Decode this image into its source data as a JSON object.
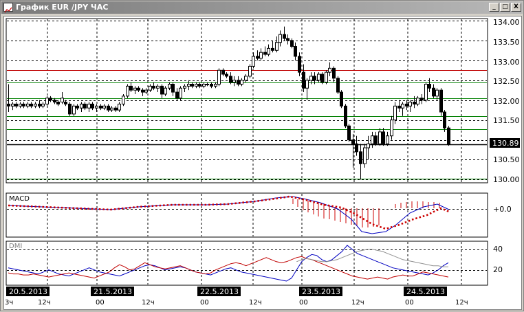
{
  "window": {
    "title": "График EUR /JPY  ЧАС",
    "buttons": [
      "_",
      "□",
      "X"
    ]
  },
  "price_axis": {
    "ticks": [
      "134.00",
      "133.50",
      "133.00",
      "132.50",
      "132.00",
      "131.50",
      "131.00",
      "130.50",
      "130.00"
    ],
    "current_price": "130.89"
  },
  "macd_panel": {
    "label": "MACD",
    "tick": "+0.0"
  },
  "dmi_panel": {
    "label": "DMI",
    "ticks": [
      "40",
      "20"
    ]
  },
  "time_axis": {
    "dates": [
      "20.5.2013",
      "21.5.2013",
      "22.5.2013",
      "23.5.2013",
      "24.5.2013"
    ],
    "hour_labels": [
      "3ч",
      "12ч",
      "00",
      "12ч",
      "00",
      "12ч",
      "00",
      "12ч",
      "00",
      "12ч"
    ]
  },
  "chart_data": [
    {
      "type": "candlestick",
      "title": "EUR /JPY ЧАС",
      "ylim": [
        129.92,
        134.05
      ],
      "horizontal_levels": {
        "red": [
          132.75
        ],
        "green": [
          132.45,
          132.05,
          131.6,
          131.27,
          130.03
        ],
        "black": [
          130.89
        ]
      },
      "candles": [
        [
          131.9,
          132.4,
          131.7,
          131.85
        ],
        [
          131.85,
          131.95,
          131.75,
          131.9
        ],
        [
          131.9,
          131.95,
          131.8,
          131.85
        ],
        [
          131.85,
          131.95,
          131.8,
          131.9
        ],
        [
          131.9,
          131.95,
          131.8,
          131.85
        ],
        [
          131.85,
          131.95,
          131.8,
          131.9
        ],
        [
          131.9,
          131.95,
          131.8,
          131.85
        ],
        [
          131.85,
          131.95,
          131.8,
          131.9
        ],
        [
          131.9,
          132.0,
          131.8,
          131.85
        ],
        [
          131.85,
          131.95,
          131.8,
          131.9
        ],
        [
          131.9,
          132.1,
          131.85,
          132.05
        ],
        [
          132.05,
          132.1,
          131.95,
          132.0
        ],
        [
          132.0,
          132.05,
          131.9,
          131.95
        ],
        [
          131.95,
          132.0,
          131.85,
          131.9
        ],
        [
          131.95,
          132.2,
          131.9,
          132.05
        ],
        [
          131.95,
          132.0,
          131.85,
          131.9
        ],
        [
          131.9,
          131.95,
          131.6,
          131.65
        ],
        [
          131.65,
          131.9,
          131.6,
          131.85
        ],
        [
          131.85,
          131.9,
          131.75,
          131.8
        ],
        [
          131.8,
          131.95,
          131.7,
          131.9
        ],
        [
          131.9,
          131.95,
          131.75,
          131.8
        ],
        [
          131.8,
          131.95,
          131.7,
          131.9
        ],
        [
          131.9,
          131.95,
          131.75,
          131.8
        ],
        [
          131.8,
          131.9,
          131.7,
          131.85
        ],
        [
          131.85,
          131.9,
          131.75,
          131.8
        ],
        [
          131.8,
          131.9,
          131.75,
          131.85
        ],
        [
          131.85,
          131.9,
          131.7,
          131.75
        ],
        [
          131.75,
          131.85,
          131.7,
          131.8
        ],
        [
          131.8,
          131.85,
          131.7,
          131.75
        ],
        [
          131.75,
          131.95,
          131.7,
          131.9
        ],
        [
          131.9,
          132.15,
          131.85,
          132.1
        ],
        [
          132.1,
          132.4,
          132.05,
          132.35
        ],
        [
          132.35,
          132.45,
          132.2,
          132.25
        ],
        [
          132.25,
          132.35,
          132.15,
          132.3
        ],
        [
          132.3,
          132.35,
          132.2,
          132.25
        ],
        [
          132.25,
          132.3,
          132.1,
          132.2
        ],
        [
          132.2,
          132.3,
          132.15,
          132.25
        ],
        [
          132.25,
          132.4,
          132.2,
          132.35
        ],
        [
          132.35,
          132.45,
          132.25,
          132.3
        ],
        [
          132.3,
          132.4,
          132.2,
          132.35
        ],
        [
          132.35,
          132.4,
          132.05,
          132.15
        ],
        [
          132.15,
          132.35,
          132.1,
          132.3
        ],
        [
          132.3,
          132.45,
          132.25,
          132.4
        ],
        [
          132.4,
          132.45,
          132.1,
          132.2
        ],
        [
          132.2,
          132.3,
          132.0,
          132.05
        ],
        [
          132.05,
          132.35,
          132.0,
          132.3
        ],
        [
          132.3,
          132.4,
          132.2,
          132.35
        ],
        [
          132.35,
          132.5,
          132.25,
          132.4
        ],
        [
          132.4,
          132.45,
          132.3,
          132.35
        ],
        [
          132.35,
          132.45,
          132.3,
          132.4
        ],
        [
          132.4,
          132.45,
          132.3,
          132.35
        ],
        [
          132.35,
          132.45,
          132.3,
          132.4
        ],
        [
          132.4,
          132.45,
          132.35,
          132.4
        ],
        [
          132.4,
          132.45,
          132.3,
          132.35
        ],
        [
          132.35,
          132.45,
          132.3,
          132.4
        ],
        [
          132.4,
          132.8,
          132.35,
          132.75
        ],
        [
          132.75,
          132.8,
          132.6,
          132.65
        ],
        [
          132.65,
          132.7,
          132.55,
          132.6
        ],
        [
          132.6,
          132.7,
          132.4,
          132.45
        ],
        [
          132.45,
          132.6,
          132.35,
          132.5
        ],
        [
          132.5,
          132.6,
          132.35,
          132.4
        ],
        [
          132.4,
          132.55,
          132.35,
          132.5
        ],
        [
          132.5,
          132.65,
          132.45,
          132.6
        ],
        [
          132.6,
          132.9,
          132.55,
          132.85
        ],
        [
          132.85,
          133.2,
          132.8,
          133.1
        ],
        [
          133.1,
          133.25,
          133.0,
          133.05
        ],
        [
          133.05,
          133.3,
          133.0,
          133.2
        ],
        [
          133.2,
          133.35,
          133.1,
          133.15
        ],
        [
          133.15,
          133.4,
          133.1,
          133.3
        ],
        [
          133.3,
          133.5,
          133.2,
          133.25
        ],
        [
          133.25,
          133.6,
          133.2,
          133.45
        ],
        [
          133.45,
          133.75,
          133.35,
          133.65
        ],
        [
          133.65,
          133.85,
          133.5,
          133.55
        ],
        [
          133.55,
          133.65,
          133.4,
          133.5
        ],
        [
          133.5,
          133.55,
          133.3,
          133.35
        ],
        [
          133.35,
          133.45,
          133.0,
          133.1
        ],
        [
          133.1,
          133.2,
          132.6,
          132.7
        ],
        [
          132.7,
          132.9,
          132.2,
          132.3
        ],
        [
          132.3,
          132.55,
          132.0,
          132.5
        ],
        [
          132.5,
          132.7,
          132.4,
          132.6
        ],
        [
          132.6,
          132.7,
          132.4,
          132.5
        ],
        [
          132.5,
          132.7,
          132.45,
          132.65
        ],
        [
          132.65,
          132.7,
          132.4,
          132.45
        ],
        [
          132.45,
          132.75,
          132.4,
          132.7
        ],
        [
          132.7,
          132.95,
          132.6,
          132.8
        ],
        [
          132.8,
          132.85,
          132.45,
          132.55
        ],
        [
          132.55,
          132.6,
          132.15,
          132.2
        ],
        [
          132.2,
          132.25,
          131.8,
          131.85
        ],
        [
          131.85,
          131.9,
          131.3,
          131.35
        ],
        [
          131.35,
          131.4,
          130.95,
          131.0
        ],
        [
          131.0,
          131.15,
          130.3,
          130.9
        ],
        [
          130.9,
          131.1,
          130.6,
          130.7
        ],
        [
          130.7,
          130.9,
          130.0,
          130.4
        ],
        [
          130.4,
          130.9,
          130.3,
          130.8
        ],
        [
          130.8,
          131.1,
          130.5,
          130.9
        ],
        [
          130.9,
          131.2,
          130.8,
          131.1
        ],
        [
          131.1,
          131.2,
          130.85,
          130.9
        ],
        [
          130.9,
          131.3,
          130.85,
          131.2
        ],
        [
          131.2,
          131.3,
          130.85,
          130.9
        ],
        [
          130.9,
          131.2,
          130.85,
          131.1
        ],
        [
          131.1,
          131.6,
          131.0,
          131.5
        ],
        [
          131.5,
          131.95,
          131.4,
          131.85
        ],
        [
          131.85,
          132.0,
          131.7,
          131.8
        ],
        [
          131.8,
          131.95,
          131.6,
          131.9
        ],
        [
          131.9,
          132.0,
          131.75,
          131.85
        ],
        [
          131.85,
          132.0,
          131.7,
          131.95
        ],
        [
          131.95,
          132.1,
          131.8,
          131.9
        ],
        [
          131.9,
          132.1,
          131.85,
          132.05
        ],
        [
          132.05,
          132.15,
          131.9,
          132.0
        ],
        [
          132.0,
          132.45,
          131.95,
          132.4
        ],
        [
          132.4,
          132.55,
          132.2,
          132.3
        ],
        [
          132.3,
          132.4,
          132.05,
          132.1
        ],
        [
          132.1,
          132.3,
          132.0,
          132.25
        ],
        [
          132.25,
          132.3,
          131.6,
          131.7
        ],
        [
          131.7,
          131.75,
          131.2,
          131.3
        ],
        [
          131.3,
          131.35,
          130.85,
          130.89
        ]
      ]
    },
    {
      "type": "line",
      "title": "MACD",
      "series": [
        {
          "name": "MACD",
          "color": "#0000c0"
        },
        {
          "name": "Signal",
          "color": "#cc0000",
          "style": "dotted"
        },
        {
          "name": "Histogram",
          "color": "#cc0000",
          "style": "bars"
        }
      ]
    },
    {
      "type": "line",
      "title": "DMI",
      "ylim": [
        5,
        48
      ],
      "series": [
        {
          "name": "+DI",
          "color": "#0000c0",
          "values": [
            22,
            21,
            20,
            19,
            18,
            17,
            16,
            18,
            20,
            18,
            16,
            15,
            14,
            16,
            18,
            20,
            22,
            20,
            18,
            17,
            16,
            15,
            14,
            16,
            18,
            20,
            22,
            24,
            25,
            24,
            22,
            20,
            21,
            22,
            23,
            22,
            20,
            18,
            17,
            16,
            15,
            17,
            19,
            21,
            22,
            20,
            18,
            17,
            16,
            15,
            14,
            13,
            12,
            11,
            10,
            9,
            12,
            20,
            28,
            32,
            35,
            34,
            30,
            28,
            30,
            34,
            38,
            44,
            40,
            36,
            34,
            32,
            30,
            28,
            26,
            24,
            22,
            21,
            20,
            19,
            18,
            17,
            16,
            15,
            17,
            20,
            24,
            27
          ]
        },
        {
          "name": "-DI",
          "color": "#c00000",
          "values": [
            17,
            16,
            16,
            15,
            15,
            16,
            15,
            14,
            13,
            14,
            15,
            16,
            17,
            16,
            15,
            14,
            13,
            12,
            14,
            16,
            18,
            22,
            25,
            23,
            20,
            21,
            24,
            27,
            25,
            23,
            22,
            21,
            22,
            23,
            24,
            22,
            20,
            18,
            17,
            16,
            17,
            20,
            22,
            24,
            26,
            27,
            26,
            24,
            26,
            28,
            30,
            32,
            30,
            28,
            27,
            28,
            30,
            32,
            33,
            31,
            30,
            28,
            26,
            24,
            22,
            20,
            18,
            16,
            14,
            13,
            12,
            11,
            12,
            13,
            12,
            11,
            13,
            14,
            15,
            14,
            14,
            16,
            18,
            17,
            16,
            15,
            14,
            13
          ]
        },
        {
          "name": "ADX",
          "color": "#909090",
          "values": [
            null,
            null,
            null,
            null,
            null,
            null,
            null,
            null,
            null,
            null,
            null,
            null,
            null,
            null,
            null,
            null,
            null,
            null,
            null,
            null,
            null,
            null,
            null,
            null,
            null,
            null,
            null,
            null,
            null,
            null,
            null,
            null,
            null,
            null,
            null,
            null,
            null,
            null,
            null,
            null,
            null,
            null,
            null,
            null,
            null,
            null,
            null,
            null,
            null,
            null,
            null,
            null,
            null,
            null,
            null,
            null,
            null,
            28,
            30,
            31,
            30,
            29,
            28,
            28,
            29,
            30,
            32,
            34,
            36,
            38,
            39,
            40,
            40,
            39,
            38,
            36,
            34,
            32,
            30,
            29,
            28,
            27,
            26,
            25,
            24,
            24,
            23,
            23
          ]
        }
      ]
    }
  ]
}
